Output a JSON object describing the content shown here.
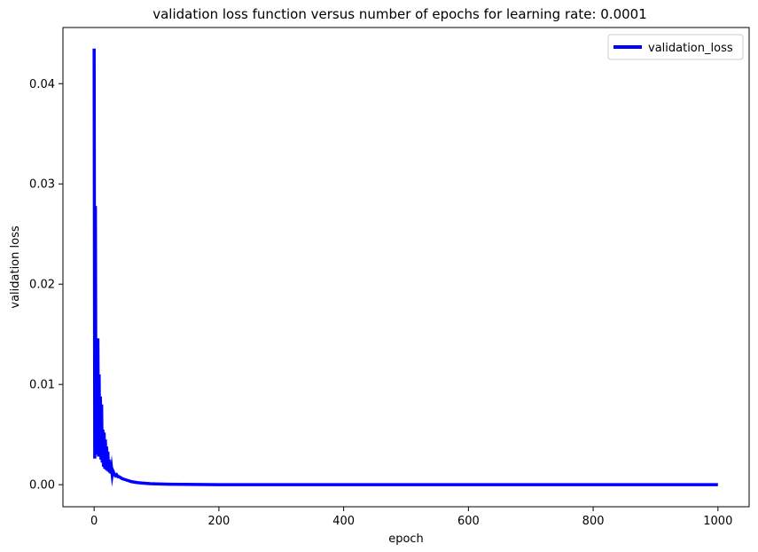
{
  "chart_data": {
    "type": "line",
    "title": "validation loss function versus number of epochs for learning rate: 0.0001",
    "xlabel": "epoch",
    "ylabel": "validation loss",
    "xlim": [
      -50,
      1050
    ],
    "ylim": [
      -0.0022,
      0.0456
    ],
    "xticks": [
      0,
      200,
      400,
      600,
      800,
      1000
    ],
    "xtick_labels": [
      "0",
      "200",
      "400",
      "600",
      "800",
      "1000"
    ],
    "yticks": [
      0.0,
      0.01,
      0.02,
      0.03,
      0.04
    ],
    "ytick_labels": [
      "0.00",
      "0.01",
      "0.02",
      "0.03",
      "0.04"
    ],
    "grid": false,
    "legend_position": "top-right",
    "series": [
      {
        "name": "validation_loss",
        "color": "#0000ff",
        "x": [
          0,
          1,
          2,
          3,
          4,
          5,
          6,
          7,
          8,
          9,
          10,
          11,
          12,
          13,
          14,
          15,
          16,
          17,
          18,
          19,
          20,
          21,
          22,
          23,
          24,
          25,
          26,
          27,
          28,
          29,
          30,
          32,
          34,
          36,
          38,
          40,
          45,
          50,
          55,
          60,
          70,
          80,
          90,
          100,
          120,
          140,
          160,
          180,
          200,
          250,
          300,
          400,
          500,
          600,
          700,
          800,
          900,
          1000
        ],
        "y": [
          0.0435,
          0.0026,
          0.0278,
          0.003,
          0.014,
          0.0032,
          0.0146,
          0.0028,
          0.011,
          0.0028,
          0.0088,
          0.0025,
          0.008,
          0.0022,
          0.0055,
          0.0018,
          0.0052,
          0.0016,
          0.0045,
          0.0015,
          0.0038,
          0.0014,
          0.0033,
          0.0013,
          0.0025,
          0.0012,
          0.002,
          0.0011,
          0.0016,
          0.001,
          0.0014,
          0.0011,
          0.0009,
          0.001,
          0.0008,
          0.0008,
          0.0006,
          0.0005,
          0.0004,
          0.0003,
          0.0002,
          0.00015,
          0.0001,
          8e-05,
          5e-05,
          3e-05,
          2e-05,
          1e-05,
          6e-06,
          3e-06,
          2e-06,
          1e-06,
          5e-07,
          3e-07,
          2e-07,
          1e-07,
          1e-07,
          1e-07
        ]
      }
    ]
  }
}
